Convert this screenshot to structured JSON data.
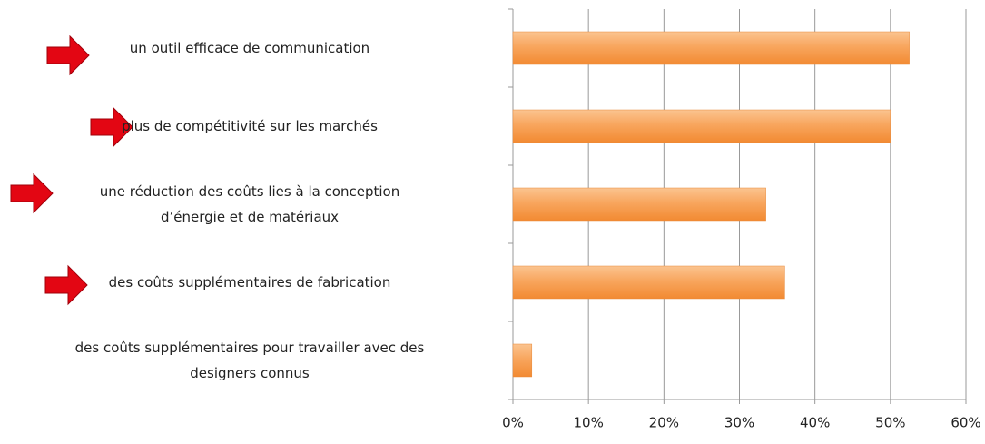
{
  "chart_data": {
    "type": "bar",
    "orientation": "horizontal",
    "categories": [
      "un outil efficace de communication",
      "plus de compétitivité sur les marchés",
      "une réduction des coûts lies à la conception\nd’énergie et de matériaux",
      "des coûts supplémentaires de fabrication",
      "des coûts supplémentaires pour travailler avec des\ndesigners connus"
    ],
    "values": [
      52.5,
      50,
      33.5,
      36,
      2.5
    ],
    "color": "#f8a65e",
    "xlim": [
      0,
      60
    ],
    "xticks": [
      {
        "value": 0,
        "label": "0%"
      },
      {
        "value": 10,
        "label": "10%"
      },
      {
        "value": 20,
        "label": "20%"
      },
      {
        "value": 30,
        "label": "30%"
      },
      {
        "value": 40,
        "label": "40%"
      },
      {
        "value": 50,
        "label": "50%"
      },
      {
        "value": 60,
        "label": "60%"
      }
    ],
    "grid": true
  }
}
